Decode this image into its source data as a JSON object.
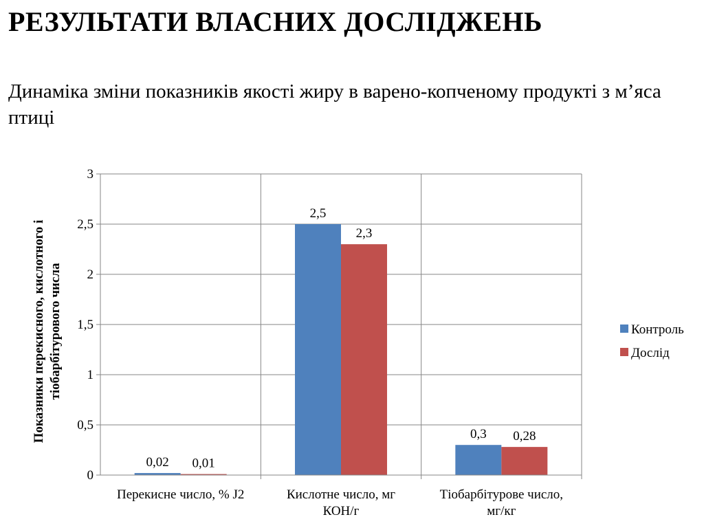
{
  "slide": {
    "title": "РЕЗУЛЬТАТИ  ВЛАСНИХ ДОСЛІДЖЕНЬ",
    "subtitle": "Динаміка зміни  показників якості жиру в варено-копченому продукті з м’яса птиці"
  },
  "chart_data": {
    "type": "bar",
    "categories": [
      [
        "Перекисне число, % J2"
      ],
      [
        "Кислотне число, мг",
        "КОН/г"
      ],
      [
        "Тіобарбітурове число,",
        "мг/кг"
      ]
    ],
    "series": [
      {
        "name": "Контроль",
        "color": "#4f81bd",
        "values": [
          0.02,
          2.5,
          0.3
        ],
        "labels": [
          "0,02",
          "2,5",
          "0,3"
        ]
      },
      {
        "name": "Дослід",
        "color": "#c0504d",
        "values": [
          0.01,
          2.3,
          0.28
        ],
        "labels": [
          "0,01",
          "2,3",
          "0,28"
        ]
      }
    ],
    "ylabel": [
      "Показники перекисного,  кислотного і",
      "тіобарбітурового числа"
    ],
    "ylim": [
      0,
      3
    ],
    "yticks": [
      0,
      0.5,
      1,
      1.5,
      2,
      2.5,
      3
    ],
    "ytick_labels": [
      "0",
      "0,5",
      "1",
      "1,5",
      "2",
      "2,5",
      "3"
    ],
    "grid": true,
    "legend": "right"
  }
}
